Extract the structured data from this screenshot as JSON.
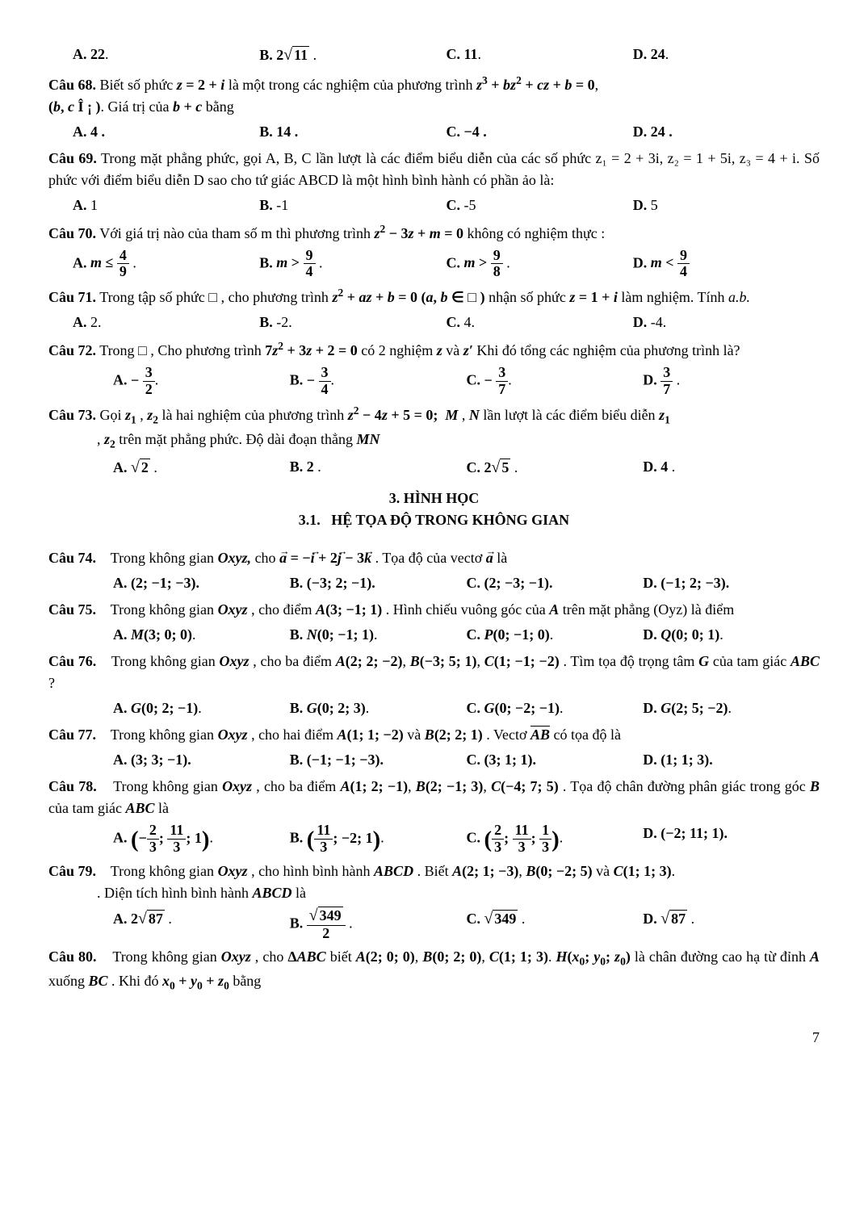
{
  "page_number": "7",
  "q_pre": {
    "A": "22.",
    "B": "2√11 .",
    "C": "11.",
    "D": "24."
  },
  "q68": {
    "label": "Câu 68.",
    "text_1": "Biết số phức ",
    "eq1": "z = 2 + i",
    "text_2": " là một trong các nghiệm của phương trình ",
    "eq2": "z³ + bz² + cz + b = 0",
    "text_3": ",",
    "line2_a": "(b, c Î ¡ )",
    "line2_b": ". Giá trị của ",
    "line2_c": "b + c",
    "line2_d": " bằng",
    "A": "4 .",
    "B": "14 .",
    "C": "−4 .",
    "D": "24 ."
  },
  "q69": {
    "label": "Câu 69.",
    "text": " Trong mặt phẳng phức, gọi A, B, C lần lượt là các điểm biểu diễn của các số phức z₁ = 2 + 3i, z₂ = 1 + 5i, z₃ = 4 + i. Số phức với điểm biểu diễn D sao cho tứ giác ABCD là một hình bình hành có phần ảo là:",
    "A": "1",
    "B": "-1",
    "C": "-5",
    "D": "5"
  },
  "q70": {
    "label": "Câu 70.",
    "text_1": "Với giá trị nào của tham số m thì phương trình ",
    "eq": "z² − 3z + m = 0",
    "text_2": " không có nghiệm thực :"
  },
  "q71": {
    "label": "Câu 71.",
    "text_1": "Trong tập số phức □ , cho phương trình ",
    "eq1": "z² + az + b = 0 (a, b ∈ □ )",
    "text_2": " nhận số phức ",
    "eq2": "z = 1 + i",
    "text_3": " làm nghiệm. Tính ",
    "eq3": "a.b.",
    "A": "2.",
    "B": "-2.",
    "C": "4.",
    "D": "-4."
  },
  "q72": {
    "label": "Câu 72.",
    "text_1": "Trong □ , Cho phương trình ",
    "eq": "7z² + 3z + 2 = 0",
    "text_2": " có 2 nghiệm ",
    "text_3": " và ",
    "text_4": " Khi đó tổng các nghiệm của phương trình là?"
  },
  "q73": {
    "label": "Câu 73.",
    "text_1": "Gọi ",
    "text_2": " là hai nghiệm của phương trình ",
    "eq": "z² − 4z + 5 = 0;",
    "text_3": " lần lượt là các điểm biểu diễn ",
    "text_4": " trên mặt phẳng phức. Độ dài đoạn thẳng ",
    "A": "√2 .",
    "B": "2 .",
    "C": "2√5 .",
    "D": "4 ."
  },
  "section": {
    "num": "3.",
    "title": "HÌNH HỌC",
    "sub_num": "3.1.",
    "sub_title": "HỆ TỌA ĐỘ TRONG KHÔNG GIAN"
  },
  "q74": {
    "label": "Câu 74.",
    "text_1": "Trong không gian ",
    "oxyz": "Oxyz,",
    "text_2": " cho ",
    "text_3": ". Tọa độ của vectơ ",
    "text_4": " là",
    "A": "(2; −1; −3).",
    "B": "(−3; 2; −1).",
    "C": "(2; −3; −1).",
    "D": "(−1; 2; −3)."
  },
  "q75": {
    "label": "Câu 75.",
    "text_1": "Trong không gian ",
    "oxyz": "Oxyz",
    "text_2": ", cho điểm ",
    "pt": "A(3; −1; 1)",
    "text_3": ". Hình chiếu vuông góc của ",
    "text_4": " trên mặt phẳng (Oyz) là điểm",
    "A": "M(3; 0; 0).",
    "B": "N(0; −1; 1).",
    "C": "P(0; −1; 0).",
    "D": "Q(0; 0; 1)."
  },
  "q76": {
    "label": "Câu 76.",
    "text_1": "Trong không gian ",
    "oxyz": "Oxyz",
    "text_2": ", cho ba điểm ",
    "pts": "A(2; 2; −2), B(−3; 5; 1), C(1; −1; −2)",
    "text_3": ". Tìm tọa độ trọng tâm ",
    "text_4": " của tam giác ",
    "abc": "ABC",
    "q": "?",
    "A": "G(0; 2; −1).",
    "B": "G(0; 2; 3).",
    "C": "G(0; −2; −1).",
    "D": "G(2; 5; −2)."
  },
  "q77": {
    "label": "Câu 77.",
    "text_1": "Trong không gian ",
    "oxyz": "Oxyz",
    "text_2": ", cho hai điểm ",
    "pts": "A(1; 1; −2)",
    "text_3": " và ",
    "pt2": "B(2; 2; 1)",
    "text_4": ". Vectơ ",
    "text_5": " có tọa độ là",
    "A": "(3; 3; −1).",
    "B": "(−1; −1; −3).",
    "C": "(3; 1; 1).",
    "D": "(1; 1; 3)."
  },
  "q78": {
    "label": "Câu 78.",
    "text_1": "Trong không gian ",
    "oxyz": "Oxyz",
    "text_2": ", cho ba điểm ",
    "pts": "A(1; 2; −1), B(2; −1; 3), C(−4; 7; 5)",
    "text_3": ". Tọa độ chân đường phân giác trong góc ",
    "text_4": " của tam giác ",
    "abc": "ABC",
    "text_5": " là",
    "D": "(−2; 11; 1)."
  },
  "q79": {
    "label": "Câu 79.",
    "text_1": "Trong không gian ",
    "oxyz": "Oxyz",
    "text_2": ", cho hình bình hành ",
    "abcd": "ABCD",
    "text_3": ". Biết ",
    "pts": "A(2; 1; −3), B(0; −2; 5)",
    "text_4": " và ",
    "pt3": "C(1; 1; 3)",
    "text_5": ". Diện tích hình bình hành ",
    "text_6": " là",
    "A": "2√87 .",
    "C": "√349 .",
    "D": "√87 ."
  },
  "q80": {
    "label": "Câu 80.",
    "text_1": "Trong không gian ",
    "oxyz": "Oxyz",
    "text_2": ", cho ",
    "abc": "ΔABC",
    "text_3": " biết ",
    "pts": "A(2; 0; 0), B(0; 2; 0), C(1; 1; 3)",
    "text_4": ". ",
    "h": "H(x₀; y₀; z₀)",
    "text_5": " là chân đường cao hạ từ đỉnh ",
    "text_6": " xuống ",
    "bc": "BC",
    "text_7": ". Khi đó ",
    "sum": "x₀ + y₀ + z₀",
    "text_8": " bằng"
  }
}
